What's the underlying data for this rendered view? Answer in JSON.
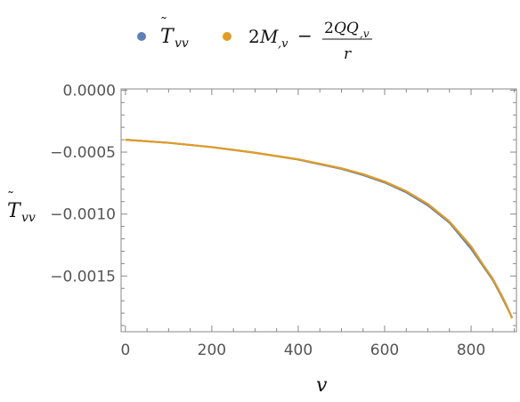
{
  "chart_data": {
    "type": "line",
    "title": "",
    "xlabel": "v",
    "ylabel": "T̃vv",
    "xlim": [
      -10,
      905
    ],
    "ylim": [
      -0.00195,
      1e-05
    ],
    "x_ticks": [
      0,
      200,
      400,
      600,
      800
    ],
    "x_tick_labels": [
      "0",
      "200",
      "400",
      "600",
      "800"
    ],
    "y_ticks": [
      0.0,
      -0.0005,
      -0.001,
      -0.0015
    ],
    "y_tick_labels": [
      "0.0000",
      "−0.0005",
      "−0.0010",
      "−0.0015"
    ],
    "legend": {
      "placement": "top",
      "entries": [
        {
          "label": "T̃vv",
          "color": "#5e81b5"
        },
        {
          "label": "2M,v − 2QQ,v / r",
          "color": "#e19c24"
        }
      ]
    },
    "grid": false,
    "series": [
      {
        "name": "T̃vv",
        "color": "#5e81b5",
        "x": [
          0,
          100,
          200,
          300,
          400,
          500,
          550,
          600,
          650,
          700,
          750,
          800,
          830,
          850,
          870,
          880,
          890,
          895
        ],
        "y": [
          -0.0004,
          -0.000425,
          -0.00046,
          -0.000505,
          -0.00056,
          -0.000635,
          -0.000685,
          -0.000745,
          -0.000825,
          -0.00093,
          -0.00107,
          -0.00128,
          -0.00143,
          -0.00153,
          -0.00166,
          -0.00173,
          -0.0018,
          -0.00184
        ]
      },
      {
        "name": "2M,v − 2QQ,v / r",
        "color": "#e19c24",
        "x": [
          0,
          100,
          200,
          300,
          400,
          500,
          550,
          600,
          650,
          700,
          750,
          800,
          830,
          850,
          870,
          880,
          890,
          895
        ],
        "y": [
          -0.0004,
          -0.000425,
          -0.00046,
          -0.000505,
          -0.000558,
          -0.00063,
          -0.000678,
          -0.000738,
          -0.000815,
          -0.000918,
          -0.00106,
          -0.00126,
          -0.00142,
          -0.00152,
          -0.00165,
          -0.00172,
          -0.0018,
          -0.00184
        ]
      }
    ]
  }
}
